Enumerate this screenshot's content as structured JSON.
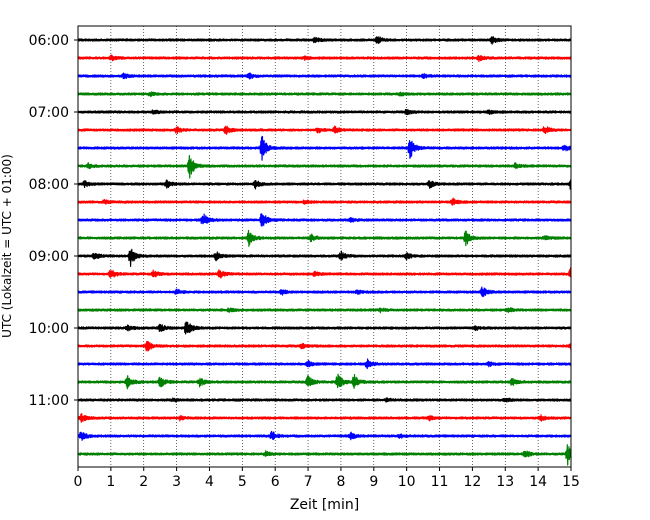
{
  "chart_data": {
    "type": "line",
    "title": "",
    "xlabel": "Zeit  [min]",
    "ylabel": "UTC (Lokalzeit = UTC + 01:00)",
    "xlim": [
      0,
      15
    ],
    "xticks": [
      0,
      1,
      2,
      3,
      4,
      5,
      6,
      7,
      8,
      9,
      10,
      11,
      12,
      13,
      14,
      15
    ],
    "xtick_labels": [
      "0",
      "1",
      "2",
      "3",
      "4",
      "5",
      "6",
      "7",
      "8",
      "9",
      "10",
      "11",
      "12",
      "13",
      "14",
      "15"
    ],
    "grid": "vertical dotted at each minute",
    "trace_interval_min": 15,
    "start_time_utc": "06:00",
    "ytick_labels": [
      {
        "label": "06:00",
        "trace": 0
      },
      {
        "label": "07:00",
        "trace": 4
      },
      {
        "label": "08:00",
        "trace": 8
      },
      {
        "label": "09:00",
        "trace": 12
      },
      {
        "label": "10:00",
        "trace": 16
      },
      {
        "label": "11:00",
        "trace": 20
      }
    ],
    "trace_colors": [
      "#000000",
      "#ff0000",
      "#0000ff",
      "#008000"
    ],
    "traces": [
      {
        "time": "06:00",
        "color": "#000000",
        "events": [
          [
            9.1,
            0.35
          ],
          [
            12.6,
            0.3
          ],
          [
            7.2,
            0.2
          ]
        ]
      },
      {
        "time": "06:15",
        "color": "#ff0000",
        "events": [
          [
            1.0,
            0.2
          ],
          [
            6.9,
            0.15
          ],
          [
            12.2,
            0.2
          ]
        ]
      },
      {
        "time": "06:30",
        "color": "#0000ff",
        "events": [
          [
            1.4,
            0.2
          ],
          [
            5.2,
            0.25
          ],
          [
            10.5,
            0.15
          ]
        ]
      },
      {
        "time": "06:45",
        "color": "#008000",
        "events": [
          [
            2.2,
            0.15
          ],
          [
            9.8,
            0.15
          ]
        ]
      },
      {
        "time": "07:00",
        "color": "#000000",
        "events": [
          [
            2.3,
            0.15
          ],
          [
            10.0,
            0.2
          ],
          [
            12.5,
            0.15
          ]
        ]
      },
      {
        "time": "07:15",
        "color": "#ff0000",
        "events": [
          [
            3.0,
            0.25
          ],
          [
            4.5,
            0.35
          ],
          [
            7.3,
            0.2
          ],
          [
            7.8,
            0.3
          ],
          [
            14.2,
            0.35
          ]
        ]
      },
      {
        "time": "07:30",
        "color": "#0000ff",
        "events": [
          [
            5.6,
            1.0
          ],
          [
            10.1,
            0.85
          ],
          [
            14.8,
            0.25
          ]
        ]
      },
      {
        "time": "07:45",
        "color": "#008000",
        "events": [
          [
            3.4,
            1.0
          ],
          [
            0.3,
            0.2
          ],
          [
            13.3,
            0.2
          ]
        ]
      },
      {
        "time": "08:00",
        "color": "#000000",
        "events": [
          [
            0.2,
            0.25
          ],
          [
            2.7,
            0.3
          ],
          [
            5.4,
            0.35
          ],
          [
            10.7,
            0.3
          ],
          [
            15.0,
            0.5
          ]
        ]
      },
      {
        "time": "08:15",
        "color": "#ff0000",
        "events": [
          [
            6.9,
            0.15
          ],
          [
            11.4,
            0.3
          ],
          [
            0.8,
            0.15
          ]
        ]
      },
      {
        "time": "08:30",
        "color": "#0000ff",
        "events": [
          [
            3.8,
            0.55
          ],
          [
            5.6,
            0.75
          ],
          [
            8.3,
            0.15
          ]
        ]
      },
      {
        "time": "08:45",
        "color": "#008000",
        "events": [
          [
            5.2,
            0.65
          ],
          [
            7.1,
            0.3
          ],
          [
            11.8,
            0.6
          ],
          [
            14.2,
            0.15
          ]
        ]
      },
      {
        "time": "09:00",
        "color": "#000000",
        "events": [
          [
            0.5,
            0.3
          ],
          [
            1.6,
            0.8
          ],
          [
            4.2,
            0.35
          ],
          [
            8.0,
            0.35
          ],
          [
            10.0,
            0.25
          ]
        ]
      },
      {
        "time": "09:15",
        "color": "#ff0000",
        "events": [
          [
            1.0,
            0.35
          ],
          [
            2.3,
            0.3
          ],
          [
            4.3,
            0.4
          ],
          [
            7.2,
            0.2
          ],
          [
            15.0,
            0.55
          ]
        ]
      },
      {
        "time": "09:30",
        "color": "#0000ff",
        "events": [
          [
            3.0,
            0.2
          ],
          [
            6.2,
            0.2
          ],
          [
            12.3,
            0.45
          ],
          [
            8.5,
            0.15
          ]
        ]
      },
      {
        "time": "09:45",
        "color": "#008000",
        "events": [
          [
            4.6,
            0.15
          ],
          [
            9.2,
            0.15
          ],
          [
            13.1,
            0.15
          ]
        ]
      },
      {
        "time": "10:00",
        "color": "#000000",
        "events": [
          [
            1.5,
            0.25
          ],
          [
            2.5,
            0.35
          ],
          [
            3.3,
            0.8
          ],
          [
            12.1,
            0.15
          ]
        ]
      },
      {
        "time": "10:15",
        "color": "#ff0000",
        "events": [
          [
            2.1,
            0.45
          ],
          [
            6.8,
            0.2
          ],
          [
            15.0,
            0.3
          ]
        ]
      },
      {
        "time": "10:30",
        "color": "#0000ff",
        "events": [
          [
            7.0,
            0.25
          ],
          [
            8.8,
            0.4
          ],
          [
            12.5,
            0.15
          ]
        ]
      },
      {
        "time": "10:45",
        "color": "#008000",
        "events": [
          [
            1.5,
            0.55
          ],
          [
            2.5,
            0.45
          ],
          [
            3.7,
            0.35
          ],
          [
            7.0,
            0.55
          ],
          [
            7.9,
            0.65
          ],
          [
            8.4,
            0.6
          ],
          [
            13.2,
            0.3
          ]
        ]
      },
      {
        "time": "11:00",
        "color": "#000000",
        "events": [
          [
            2.9,
            0.15
          ],
          [
            9.4,
            0.15
          ],
          [
            13.0,
            0.15
          ]
        ]
      },
      {
        "time": "11:15",
        "color": "#ff0000",
        "events": [
          [
            0.1,
            0.35
          ],
          [
            3.1,
            0.15
          ],
          [
            10.7,
            0.15
          ],
          [
            14.1,
            0.2
          ]
        ]
      },
      {
        "time": "11:30",
        "color": "#0000ff",
        "events": [
          [
            0.1,
            0.4
          ],
          [
            5.9,
            0.35
          ],
          [
            8.3,
            0.25
          ],
          [
            9.8,
            0.15
          ]
        ]
      },
      {
        "time": "11:45",
        "color": "#008000",
        "events": [
          [
            5.7,
            0.2
          ],
          [
            13.6,
            0.3
          ],
          [
            14.9,
            0.85
          ]
        ]
      }
    ]
  }
}
